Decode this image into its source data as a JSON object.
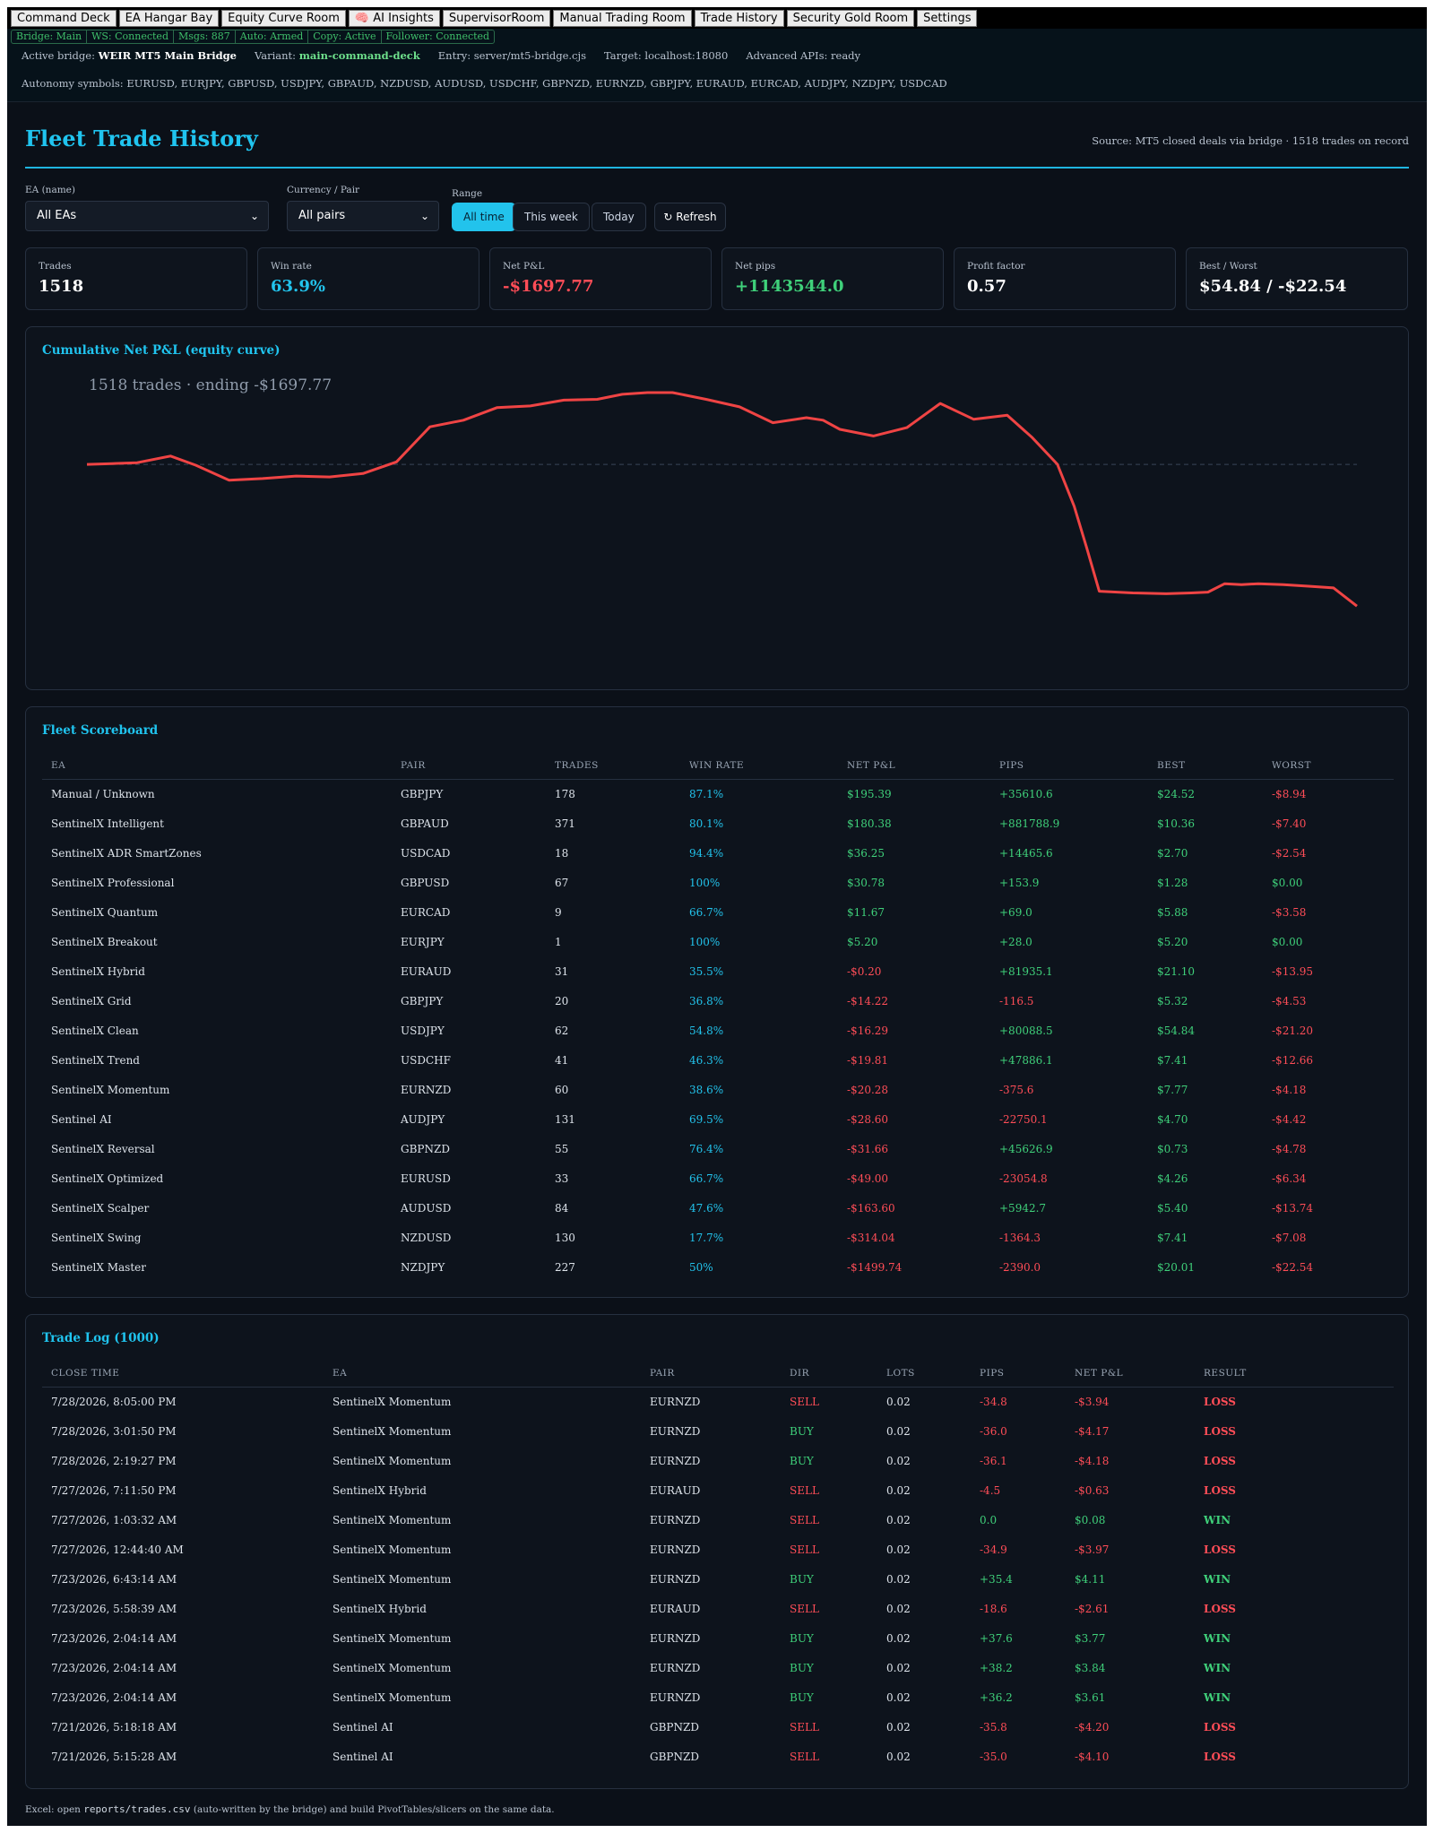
{
  "tabs": [
    {
      "label": "Command Deck"
    },
    {
      "label": "EA Hangar Bay"
    },
    {
      "label": "Equity Curve Room"
    },
    {
      "label": "🧠 AI Insights"
    },
    {
      "label": "SupervisorRoom"
    },
    {
      "label": "Manual Trading Room"
    },
    {
      "label": "Trade History"
    },
    {
      "label": "Security Gold Room"
    },
    {
      "label": "Settings"
    }
  ],
  "status": {
    "bridge": "Bridge: Main",
    "ws": "WS: Connected",
    "msgs": "Msgs: 887",
    "auto": "Auto: Armed",
    "copy": "Copy: Active",
    "follower": "Follower: Connected"
  },
  "info": {
    "active_label": "Active bridge:",
    "active_value": "WEIR MT5 Main Bridge",
    "variant_label": "Variant:",
    "variant_value": "main-command-deck",
    "entry": "Entry: server/mt5-bridge.cjs",
    "target": "Target: localhost:18080",
    "apis": "Advanced APIs: ready",
    "autonomy": "Autonomy symbols: EURUSD, EURJPY, GBPUSD, USDJPY, GBPAUD, NZDUSD, AUDUSD, USDCHF, GBPNZD, EURNZD, GBPJPY, EURAUD, EURCAD, AUDJPY, NZDJPY, USDCAD"
  },
  "header": {
    "title": "Fleet Trade History",
    "source": "Source: MT5 closed deals via bridge · 1518 trades on record"
  },
  "filters": {
    "ea_label": "EA (name)",
    "ea_value": "All EAs",
    "pair_label": "Currency / Pair",
    "pair_value": "All pairs",
    "range_label": "Range",
    "range_all": "All time",
    "range_week": "This week",
    "range_today": "Today",
    "refresh": "↻ Refresh"
  },
  "stats": {
    "trades_label": "Trades",
    "trades_value": "1518",
    "winrate_label": "Win rate",
    "winrate_value": "63.9%",
    "netpl_label": "Net P&L",
    "netpl_value": "-$1697.77",
    "pips_label": "Net pips",
    "pips_value": "+1143544.0",
    "pf_label": "Profit factor",
    "pf_value": "0.57",
    "bw_label": "Best / Worst",
    "bw_value": "$54.84 / -$22.54"
  },
  "chart_data": {
    "type": "line",
    "title": "Cumulative Net P&L (equity curve)",
    "subtitle": "1518 trades · ending -$1697.77",
    "color": "#ef4444",
    "baseline": 0,
    "ylim": [
      -1900,
      1000
    ],
    "xlim": [
      0,
      1518
    ],
    "x": [
      0,
      30,
      60,
      100,
      130,
      170,
      210,
      250,
      290,
      330,
      370,
      410,
      450,
      490,
      530,
      570,
      610,
      640,
      670,
      700,
      740,
      780,
      820,
      860,
      880,
      900,
      940,
      980,
      1020,
      1060,
      1100,
      1130,
      1160,
      1180,
      1195,
      1210,
      1250,
      1290,
      1320,
      1340,
      1360,
      1380,
      1400,
      1430,
      1460,
      1490,
      1518
    ],
    "y": [
      0,
      10,
      20,
      100,
      -10,
      -190,
      -170,
      -140,
      -150,
      -110,
      30,
      450,
      530,
      680,
      700,
      770,
      780,
      840,
      860,
      860,
      780,
      690,
      500,
      560,
      530,
      420,
      340,
      440,
      730,
      540,
      590,
      320,
      1,
      -500,
      -1000,
      -1520,
      -1540,
      -1550,
      -1540,
      -1530,
      -1430,
      -1440,
      -1430,
      -1440,
      -1460,
      -1480,
      -1697.77
    ]
  },
  "scoreboard": {
    "title": "Fleet Scoreboard",
    "headers": [
      "EA",
      "PAIR",
      "TRADES",
      "WIN RATE",
      "NET P&L",
      "PIPS",
      "BEST",
      "WORST"
    ],
    "rows": [
      [
        "Manual / Unknown",
        "GBPJPY",
        "178",
        "87.1%",
        "$195.39",
        "+35610.6",
        "$24.52",
        "-$8.94"
      ],
      [
        "SentinelX Intelligent",
        "GBPAUD",
        "371",
        "80.1%",
        "$180.38",
        "+881788.9",
        "$10.36",
        "-$7.40"
      ],
      [
        "SentinelX ADR SmartZones",
        "USDCAD",
        "18",
        "94.4%",
        "$36.25",
        "+14465.6",
        "$2.70",
        "-$2.54"
      ],
      [
        "SentinelX Professional",
        "GBPUSD",
        "67",
        "100%",
        "$30.78",
        "+153.9",
        "$1.28",
        "$0.00"
      ],
      [
        "SentinelX Quantum",
        "EURCAD",
        "9",
        "66.7%",
        "$11.67",
        "+69.0",
        "$5.88",
        "-$3.58"
      ],
      [
        "SentinelX Breakout",
        "EURJPY",
        "1",
        "100%",
        "$5.20",
        "+28.0",
        "$5.20",
        "$0.00"
      ],
      [
        "SentinelX Hybrid",
        "EURAUD",
        "31",
        "35.5%",
        "-$0.20",
        "+81935.1",
        "$21.10",
        "-$13.95"
      ],
      [
        "SentinelX Grid",
        "GBPJPY",
        "20",
        "36.8%",
        "-$14.22",
        "-116.5",
        "$5.32",
        "-$4.53"
      ],
      [
        "SentinelX Clean",
        "USDJPY",
        "62",
        "54.8%",
        "-$16.29",
        "+80088.5",
        "$54.84",
        "-$21.20"
      ],
      [
        "SentinelX Trend",
        "USDCHF",
        "41",
        "46.3%",
        "-$19.81",
        "+47886.1",
        "$7.41",
        "-$12.66"
      ],
      [
        "SentinelX Momentum",
        "EURNZD",
        "60",
        "38.6%",
        "-$20.28",
        "-375.6",
        "$7.77",
        "-$4.18"
      ],
      [
        "Sentinel AI",
        "AUDJPY",
        "131",
        "69.5%",
        "-$28.60",
        "-22750.1",
        "$4.70",
        "-$4.42"
      ],
      [
        "SentinelX Reversal",
        "GBPNZD",
        "55",
        "76.4%",
        "-$31.66",
        "+45626.9",
        "$0.73",
        "-$4.78"
      ],
      [
        "SentinelX Optimized",
        "EURUSD",
        "33",
        "66.7%",
        "-$49.00",
        "-23054.8",
        "$4.26",
        "-$6.34"
      ],
      [
        "SentinelX Scalper",
        "AUDUSD",
        "84",
        "47.6%",
        "-$163.60",
        "+5942.7",
        "$5.40",
        "-$13.74"
      ],
      [
        "SentinelX Swing",
        "NZDUSD",
        "130",
        "17.7%",
        "-$314.04",
        "-1364.3",
        "$7.41",
        "-$7.08"
      ],
      [
        "SentinelX Master",
        "NZDJPY",
        "227",
        "50%",
        "-$1499.74",
        "-2390.0",
        "$20.01",
        "-$22.54"
      ]
    ]
  },
  "tradelog": {
    "title": "Trade Log (1000)",
    "headers": [
      "CLOSE TIME",
      "EA",
      "PAIR",
      "DIR",
      "LOTS",
      "PIPS",
      "NET P&L",
      "RESULT"
    ],
    "rows": [
      [
        "7/28/2026, 8:05:00 PM",
        "SentinelX Momentum",
        "EURNZD",
        "SELL",
        "0.02",
        "-34.8",
        "-$3.94",
        "LOSS"
      ],
      [
        "7/28/2026, 3:01:50 PM",
        "SentinelX Momentum",
        "EURNZD",
        "BUY",
        "0.02",
        "-36.0",
        "-$4.17",
        "LOSS"
      ],
      [
        "7/28/2026, 2:19:27 PM",
        "SentinelX Momentum",
        "EURNZD",
        "BUY",
        "0.02",
        "-36.1",
        "-$4.18",
        "LOSS"
      ],
      [
        "7/27/2026, 7:11:50 PM",
        "SentinelX Hybrid",
        "EURAUD",
        "SELL",
        "0.02",
        "-4.5",
        "-$0.63",
        "LOSS"
      ],
      [
        "7/27/2026, 1:03:32 AM",
        "SentinelX Momentum",
        "EURNZD",
        "SELL",
        "0.02",
        "0.0",
        "$0.08",
        "WIN"
      ],
      [
        "7/27/2026, 12:44:40 AM",
        "SentinelX Momentum",
        "EURNZD",
        "SELL",
        "0.02",
        "-34.9",
        "-$3.97",
        "LOSS"
      ],
      [
        "7/23/2026, 6:43:14 AM",
        "SentinelX Momentum",
        "EURNZD",
        "BUY",
        "0.02",
        "+35.4",
        "$4.11",
        "WIN"
      ],
      [
        "7/23/2026, 5:58:39 AM",
        "SentinelX Hybrid",
        "EURAUD",
        "SELL",
        "0.02",
        "-18.6",
        "-$2.61",
        "LOSS"
      ],
      [
        "7/23/2026, 2:04:14 AM",
        "SentinelX Momentum",
        "EURNZD",
        "BUY",
        "0.02",
        "+37.6",
        "$3.77",
        "WIN"
      ],
      [
        "7/23/2026, 2:04:14 AM",
        "SentinelX Momentum",
        "EURNZD",
        "BUY",
        "0.02",
        "+38.2",
        "$3.84",
        "WIN"
      ],
      [
        "7/23/2026, 2:04:14 AM",
        "SentinelX Momentum",
        "EURNZD",
        "BUY",
        "0.02",
        "+36.2",
        "$3.61",
        "WIN"
      ],
      [
        "7/21/2026, 5:18:18 AM",
        "Sentinel AI",
        "GBPNZD",
        "SELL",
        "0.02",
        "-35.8",
        "-$4.20",
        "LOSS"
      ],
      [
        "7/21/2026, 5:15:28 AM",
        "Sentinel AI",
        "GBPNZD",
        "SELL",
        "0.02",
        "-35.0",
        "-$4.10",
        "LOSS"
      ]
    ]
  },
  "footer": {
    "pre": "Excel: open",
    "code": "reports/trades.csv",
    "post": "(auto-written by the bridge) and build PivotTables/slicers on the same data."
  }
}
